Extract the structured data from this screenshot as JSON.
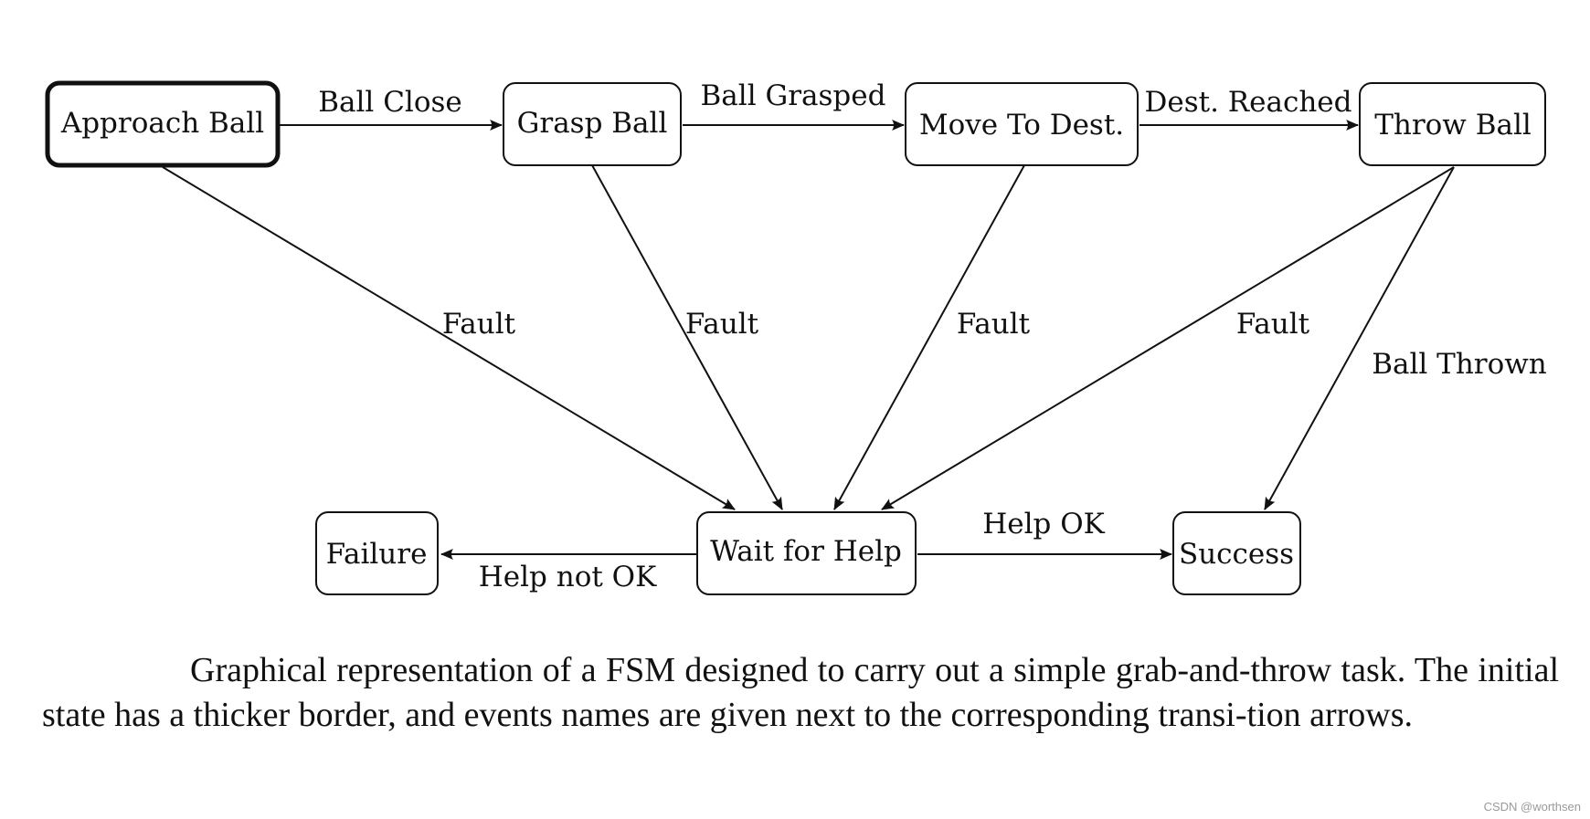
{
  "diagram": {
    "states": {
      "approach_ball": "Approach Ball",
      "grasp_ball": "Grasp Ball",
      "move_to_dest": "Move To Dest.",
      "throw_ball": "Throw Ball",
      "failure": "Failure",
      "wait_for_help": "Wait for Help",
      "success": "Success"
    },
    "initial_state": "Approach Ball",
    "transitions": [
      {
        "from": "Approach Ball",
        "to": "Grasp Ball",
        "event": "Ball Close"
      },
      {
        "from": "Grasp Ball",
        "to": "Move To Dest.",
        "event": "Ball Grasped"
      },
      {
        "from": "Move To Dest.",
        "to": "Throw Ball",
        "event": "Dest. Reached"
      },
      {
        "from": "Approach Ball",
        "to": "Wait for Help",
        "event": "Fault"
      },
      {
        "from": "Grasp Ball",
        "to": "Wait for Help",
        "event": "Fault"
      },
      {
        "from": "Move To Dest.",
        "to": "Wait for Help",
        "event": "Fault"
      },
      {
        "from": "Throw Ball",
        "to": "Wait for Help",
        "event": "Fault"
      },
      {
        "from": "Throw Ball",
        "to": "Success",
        "event": "Ball Thrown"
      },
      {
        "from": "Wait for Help",
        "to": "Success",
        "event": "Help OK"
      },
      {
        "from": "Wait for Help",
        "to": "Failure",
        "event": "Help not OK"
      }
    ],
    "edge_labels": {
      "ball_close": "Ball Close",
      "ball_grasped": "Ball Grasped",
      "dest_reached": "Dest. Reached",
      "fault": "Fault",
      "ball_thrown": "Ball Thrown",
      "help_ok": "Help OK",
      "help_not_ok": "Help not OK"
    }
  },
  "caption": "Graphical representation of a FSM designed to carry out a simple grab-and-throw task. The initial state has a thicker border, and events names are given next to the corresponding transi-tion arrows.",
  "watermark": "CSDN @worthsen"
}
